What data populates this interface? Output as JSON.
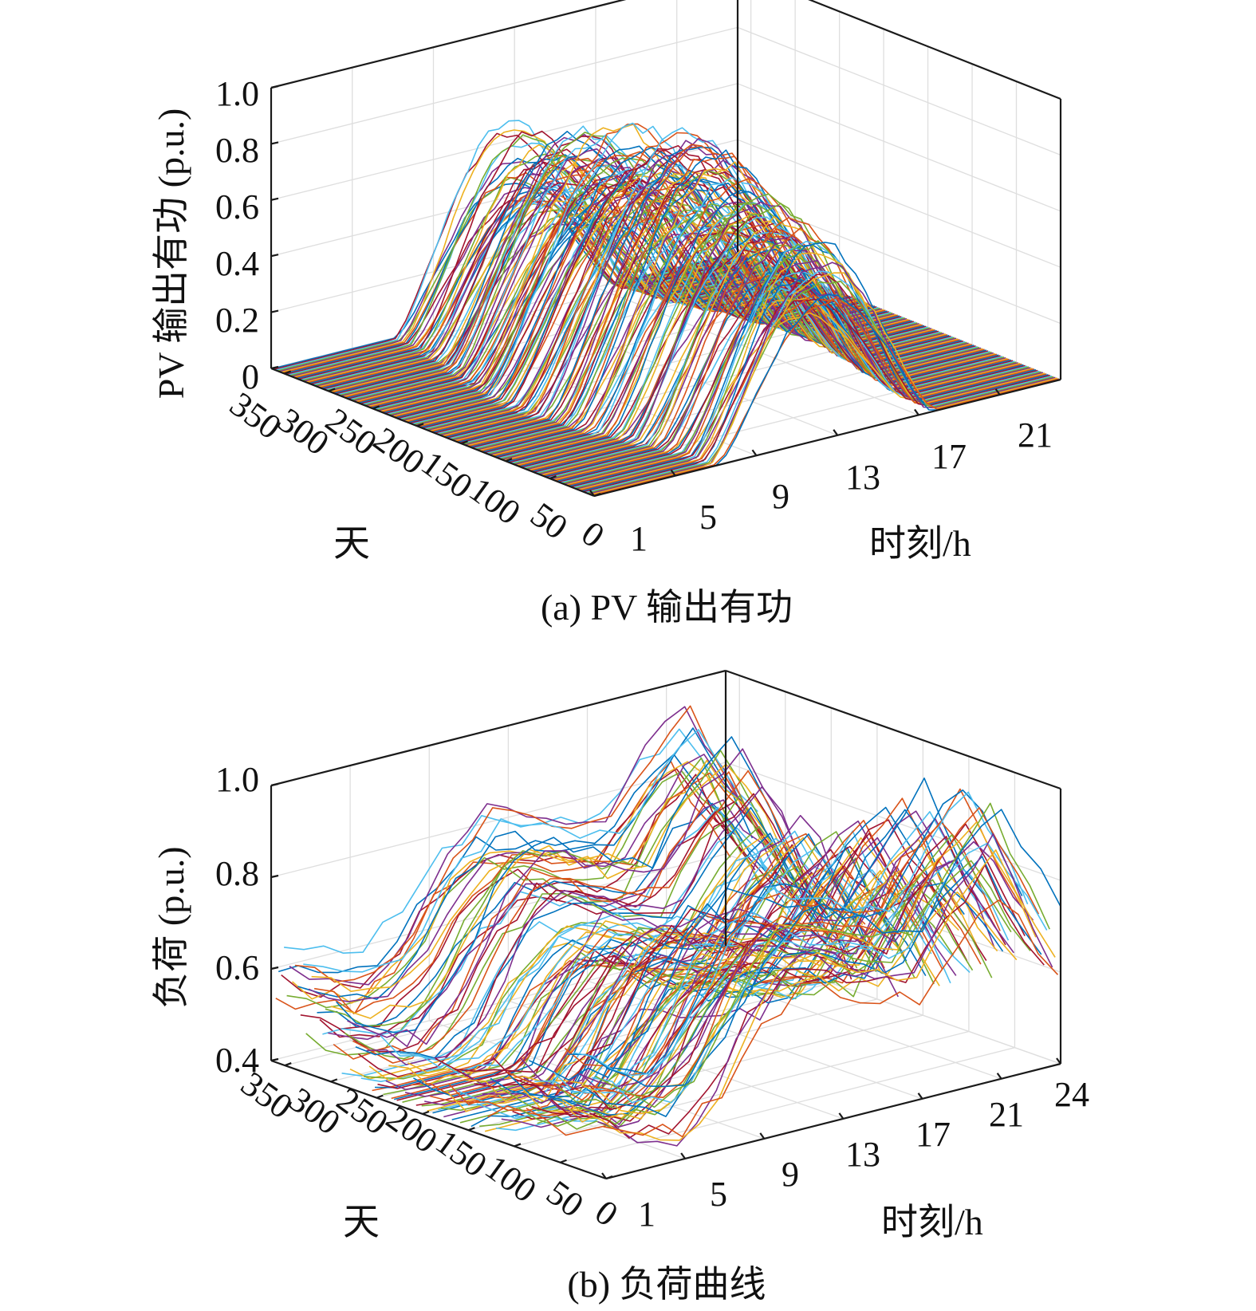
{
  "chart_data": [
    {
      "type": "line",
      "subtype": "3d-waterfall",
      "caption": "(a) PV 输出有功",
      "zlabel": "PV 输出有功 (p.u.)",
      "xlabel": "时刻/h",
      "ylabel": "天",
      "zlim": [
        0,
        1.0
      ],
      "xlim": [
        1,
        24
      ],
      "ylim": [
        0,
        365
      ],
      "z_ticks": [
        "0",
        "0.2",
        "0.4",
        "0.6",
        "0.8",
        "1.0"
      ],
      "x_ticks": [
        "1",
        "5",
        "9",
        "13",
        "17",
        "21"
      ],
      "y_ticks": [
        "0",
        "50",
        "100",
        "150",
        "200",
        "250",
        "300",
        "350"
      ],
      "grid": true,
      "series_description": "one daily PV curve per day (365), zero before ~06:00 and after ~19:00, bell peak near 12:00",
      "peak_by_day_sample": {
        "days": [
          0,
          50,
          100,
          150,
          200,
          250,
          300,
          350
        ],
        "peak_values": [
          0.55,
          0.65,
          0.75,
          0.82,
          0.85,
          0.8,
          0.7,
          0.6
        ]
      }
    },
    {
      "type": "line",
      "subtype": "3d-waterfall",
      "caption": "(b) 负荷曲线",
      "zlabel": "负荷 (p.u.)",
      "xlabel": "时刻/h",
      "ylabel": "天",
      "zlim": [
        0.4,
        1.0
      ],
      "xlim": [
        1,
        24
      ],
      "ylim": [
        0,
        365
      ],
      "z_ticks": [
        "0.4",
        "0.6",
        "0.8",
        "1.0"
      ],
      "x_ticks": [
        "1",
        "5",
        "9",
        "13",
        "17",
        "21",
        "24"
      ],
      "y_ticks": [
        "0",
        "50",
        "100",
        "150",
        "200",
        "250",
        "300",
        "350"
      ],
      "grid": true,
      "series_description": "one daily load curve per day (365), night trough ~0.45, morning rise, evening peak near 20:00",
      "typical_profile": {
        "hours": [
          1,
          3,
          5,
          7,
          9,
          11,
          13,
          15,
          17,
          19,
          21,
          23,
          24
        ],
        "values": [
          0.55,
          0.5,
          0.48,
          0.55,
          0.68,
          0.75,
          0.72,
          0.68,
          0.66,
          0.78,
          0.85,
          0.7,
          0.62
        ]
      }
    }
  ],
  "series_palette": [
    "#0072BD",
    "#D95319",
    "#EDB120",
    "#7E2F8E",
    "#77AC30",
    "#4DBEEE",
    "#A2142F"
  ]
}
